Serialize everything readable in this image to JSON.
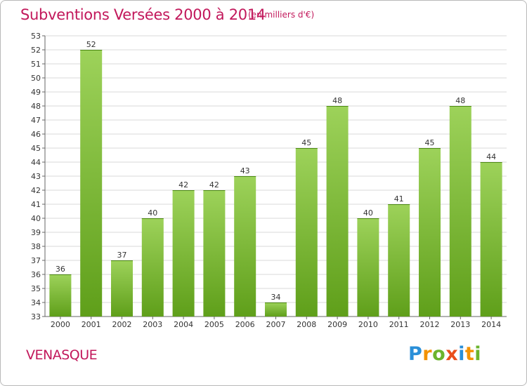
{
  "header": {
    "title": "Subventions Versées 2000 à 2014",
    "subtitle": "(en milliers d'€)"
  },
  "footer": {
    "commune": "VENASQUE",
    "logo_text": "Proxiti"
  },
  "colors": {
    "bar_light": "#9dd25a",
    "bar_dark": "#5f9f1a",
    "title": "#c2185b",
    "grid": "#d8d8d8"
  },
  "chart_data": {
    "type": "bar",
    "title": "Subventions Versées 2000 à 2014",
    "subtitle": "(en milliers d'€)",
    "xlabel": "",
    "ylabel": "",
    "categories": [
      "2000",
      "2001",
      "2002",
      "2003",
      "2004",
      "2005",
      "2006",
      "2007",
      "2008",
      "2009",
      "2010",
      "2011",
      "2012",
      "2013",
      "2014"
    ],
    "values": [
      36,
      52,
      37,
      40,
      42,
      42,
      43,
      34,
      45,
      48,
      40,
      41,
      45,
      48,
      44
    ],
    "ylim": [
      33,
      53
    ],
    "ytick_step": 1,
    "grid": true,
    "data_labels": true
  }
}
